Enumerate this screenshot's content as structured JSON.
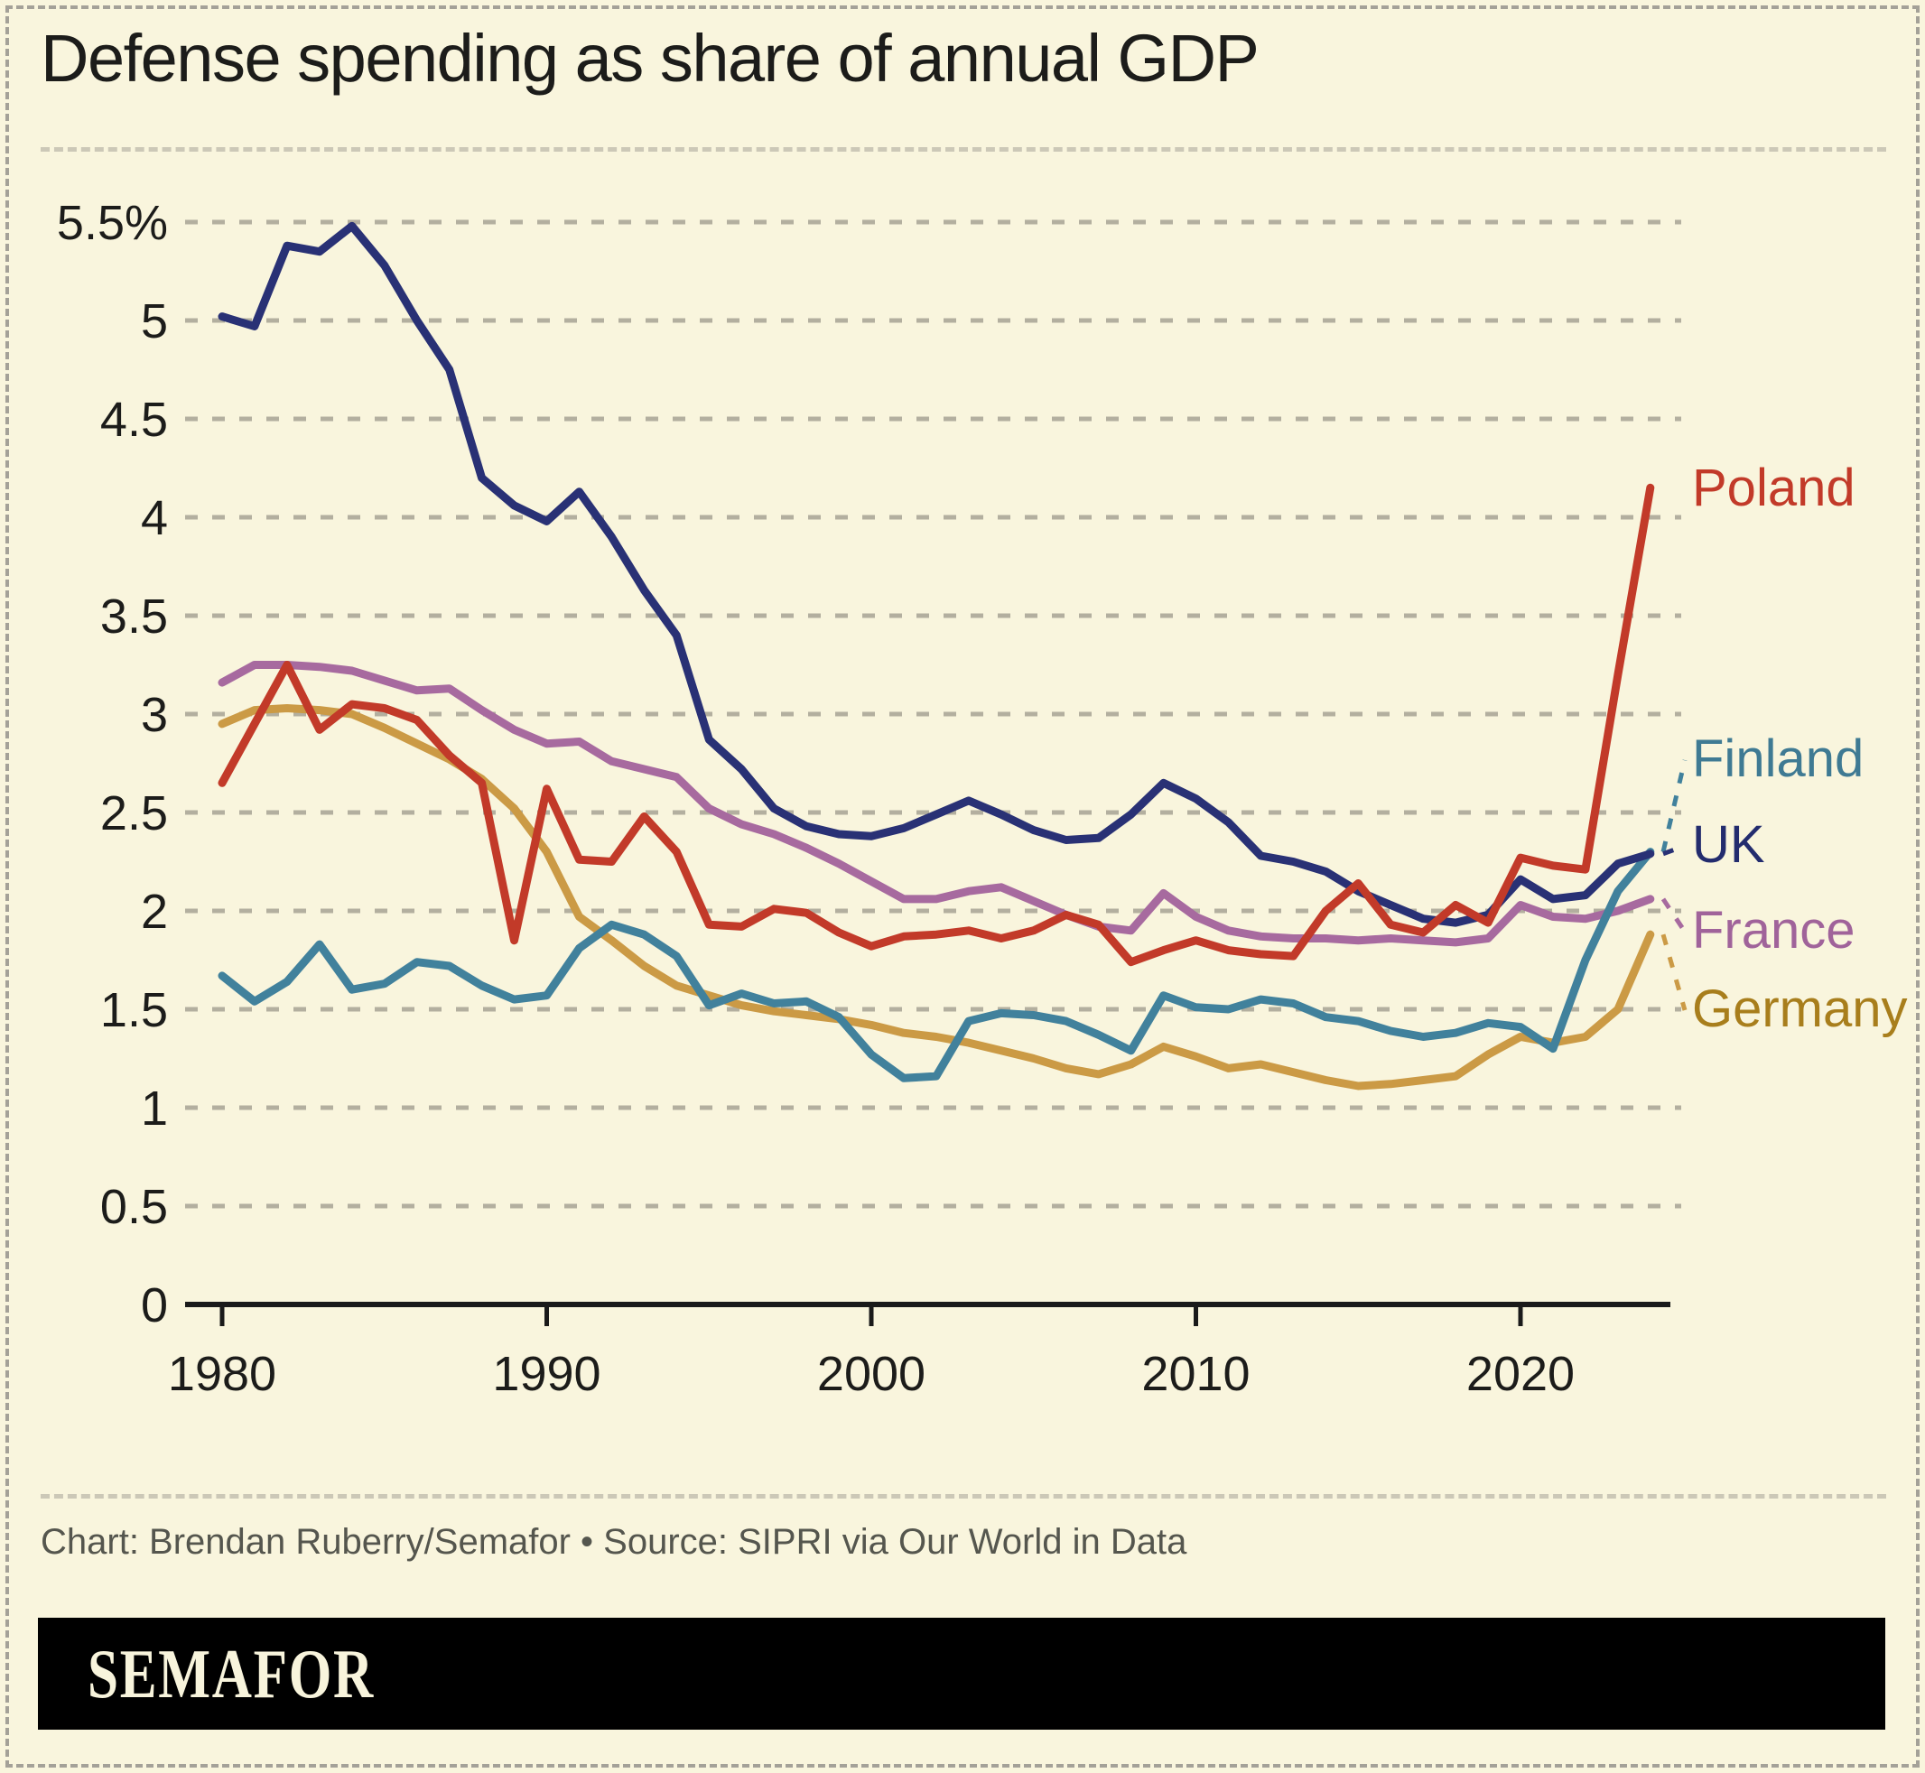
{
  "title": "Defense spending as share of annual GDP",
  "footer": {
    "credit": "Chart: Brendan Ruberry/Semafor • Source: SIPRI via Our World in Data",
    "logo": "SEMAFOR"
  },
  "colors": {
    "background": "#f9f5dd",
    "gridline": "#b3af9f",
    "axis": "#1a1a1a",
    "separator": "#ccc8b7",
    "credit_text": "#55564e",
    "logo_bar": "#000000",
    "logo_text": "#f8f4dc"
  },
  "chart_data": {
    "type": "line",
    "title": "Defense spending as share of annual GDP",
    "xlabel": "",
    "ylabel": "",
    "unit": "% of GDP",
    "ylim": [
      0,
      5.5
    ],
    "xlim": [
      1980,
      2024
    ],
    "grid": "horizontal dashed",
    "legend_position": "right-end-labels",
    "x_ticks": [
      1980,
      1990,
      2000,
      2010,
      2020
    ],
    "y_ticks": [
      {
        "value": 5.5,
        "label": "5.5%"
      },
      {
        "value": 5,
        "label": "5"
      },
      {
        "value": 4.5,
        "label": "4.5"
      },
      {
        "value": 4,
        "label": "4"
      },
      {
        "value": 3.5,
        "label": "3.5"
      },
      {
        "value": 3,
        "label": "3"
      },
      {
        "value": 2.5,
        "label": "2.5"
      },
      {
        "value": 2,
        "label": "2"
      },
      {
        "value": 1.5,
        "label": "1.5"
      },
      {
        "value": 1,
        "label": "1"
      },
      {
        "value": 0.5,
        "label": "0.5"
      },
      {
        "value": 0,
        "label": "0"
      }
    ],
    "x": [
      1980,
      1981,
      1982,
      1983,
      1984,
      1985,
      1986,
      1987,
      1988,
      1989,
      1990,
      1991,
      1992,
      1993,
      1994,
      1995,
      1996,
      1997,
      1998,
      1999,
      2000,
      2001,
      2002,
      2003,
      2004,
      2005,
      2006,
      2007,
      2008,
      2009,
      2010,
      2011,
      2012,
      2013,
      2014,
      2015,
      2016,
      2017,
      2018,
      2019,
      2020,
      2021,
      2022,
      2023,
      2024
    ],
    "series": [
      {
        "name": "France",
        "color": "#a76a9f",
        "label_color": "#a0639a",
        "values": [
          3.16,
          3.25,
          3.25,
          3.24,
          3.22,
          3.17,
          3.12,
          3.13,
          3.02,
          2.92,
          2.85,
          2.86,
          2.76,
          2.72,
          2.68,
          2.52,
          2.44,
          2.39,
          2.32,
          2.24,
          2.15,
          2.06,
          2.06,
          2.1,
          2.12,
          2.05,
          1.98,
          1.92,
          1.9,
          2.09,
          1.97,
          1.9,
          1.87,
          1.86,
          1.86,
          1.85,
          1.86,
          1.85,
          1.84,
          1.86,
          2.03,
          1.97,
          1.96,
          2.0,
          2.06
        ]
      },
      {
        "name": "Germany",
        "color": "#cb9a45",
        "label_color": "#a87e1c",
        "values": [
          2.95,
          3.02,
          3.03,
          3.02,
          3.0,
          2.93,
          2.85,
          2.77,
          2.67,
          2.52,
          2.3,
          1.97,
          1.85,
          1.72,
          1.62,
          1.57,
          1.52,
          1.49,
          1.47,
          1.45,
          1.42,
          1.38,
          1.36,
          1.33,
          1.29,
          1.25,
          1.2,
          1.17,
          1.22,
          1.31,
          1.26,
          1.2,
          1.22,
          1.18,
          1.14,
          1.11,
          1.12,
          1.14,
          1.16,
          1.27,
          1.36,
          1.33,
          1.36,
          1.5,
          1.88
        ]
      },
      {
        "name": "Finland",
        "color": "#41819c",
        "label_color": "#3f7a93",
        "values": [
          1.67,
          1.54,
          1.64,
          1.83,
          1.6,
          1.63,
          1.74,
          1.72,
          1.62,
          1.55,
          1.57,
          1.81,
          1.93,
          1.88,
          1.77,
          1.52,
          1.58,
          1.53,
          1.54,
          1.46,
          1.27,
          1.15,
          1.16,
          1.44,
          1.48,
          1.47,
          1.44,
          1.37,
          1.29,
          1.57,
          1.51,
          1.5,
          1.55,
          1.53,
          1.46,
          1.44,
          1.39,
          1.36,
          1.38,
          1.43,
          1.41,
          1.3,
          1.75,
          2.1,
          2.3
        ]
      },
      {
        "name": "UK",
        "color": "#293175",
        "label_color": "#232c6e",
        "values": [
          5.02,
          4.97,
          5.38,
          5.35,
          5.48,
          5.28,
          5.0,
          4.75,
          4.2,
          4.06,
          3.98,
          4.13,
          3.9,
          3.63,
          3.4,
          2.87,
          2.72,
          2.52,
          2.43,
          2.39,
          2.38,
          2.42,
          2.49,
          2.56,
          2.49,
          2.41,
          2.36,
          2.37,
          2.49,
          2.65,
          2.57,
          2.45,
          2.28,
          2.25,
          2.2,
          2.1,
          2.03,
          1.96,
          1.94,
          1.98,
          2.16,
          2.06,
          2.08,
          2.24,
          2.29
        ]
      },
      {
        "name": "Poland",
        "color": "#c23a29",
        "label_color": "#c23a29",
        "values": [
          2.65,
          2.95,
          3.25,
          2.92,
          3.05,
          3.03,
          2.97,
          2.79,
          2.65,
          1.85,
          2.62,
          2.26,
          2.25,
          2.48,
          2.3,
          1.93,
          1.92,
          2.01,
          1.99,
          1.89,
          1.82,
          1.87,
          1.88,
          1.9,
          1.86,
          1.9,
          1.98,
          1.93,
          1.74,
          1.8,
          1.85,
          1.8,
          1.78,
          1.77,
          2.0,
          2.14,
          1.93,
          1.89,
          2.03,
          1.94,
          2.27,
          2.23,
          2.21,
          3.2,
          4.15
        ]
      }
    ]
  }
}
